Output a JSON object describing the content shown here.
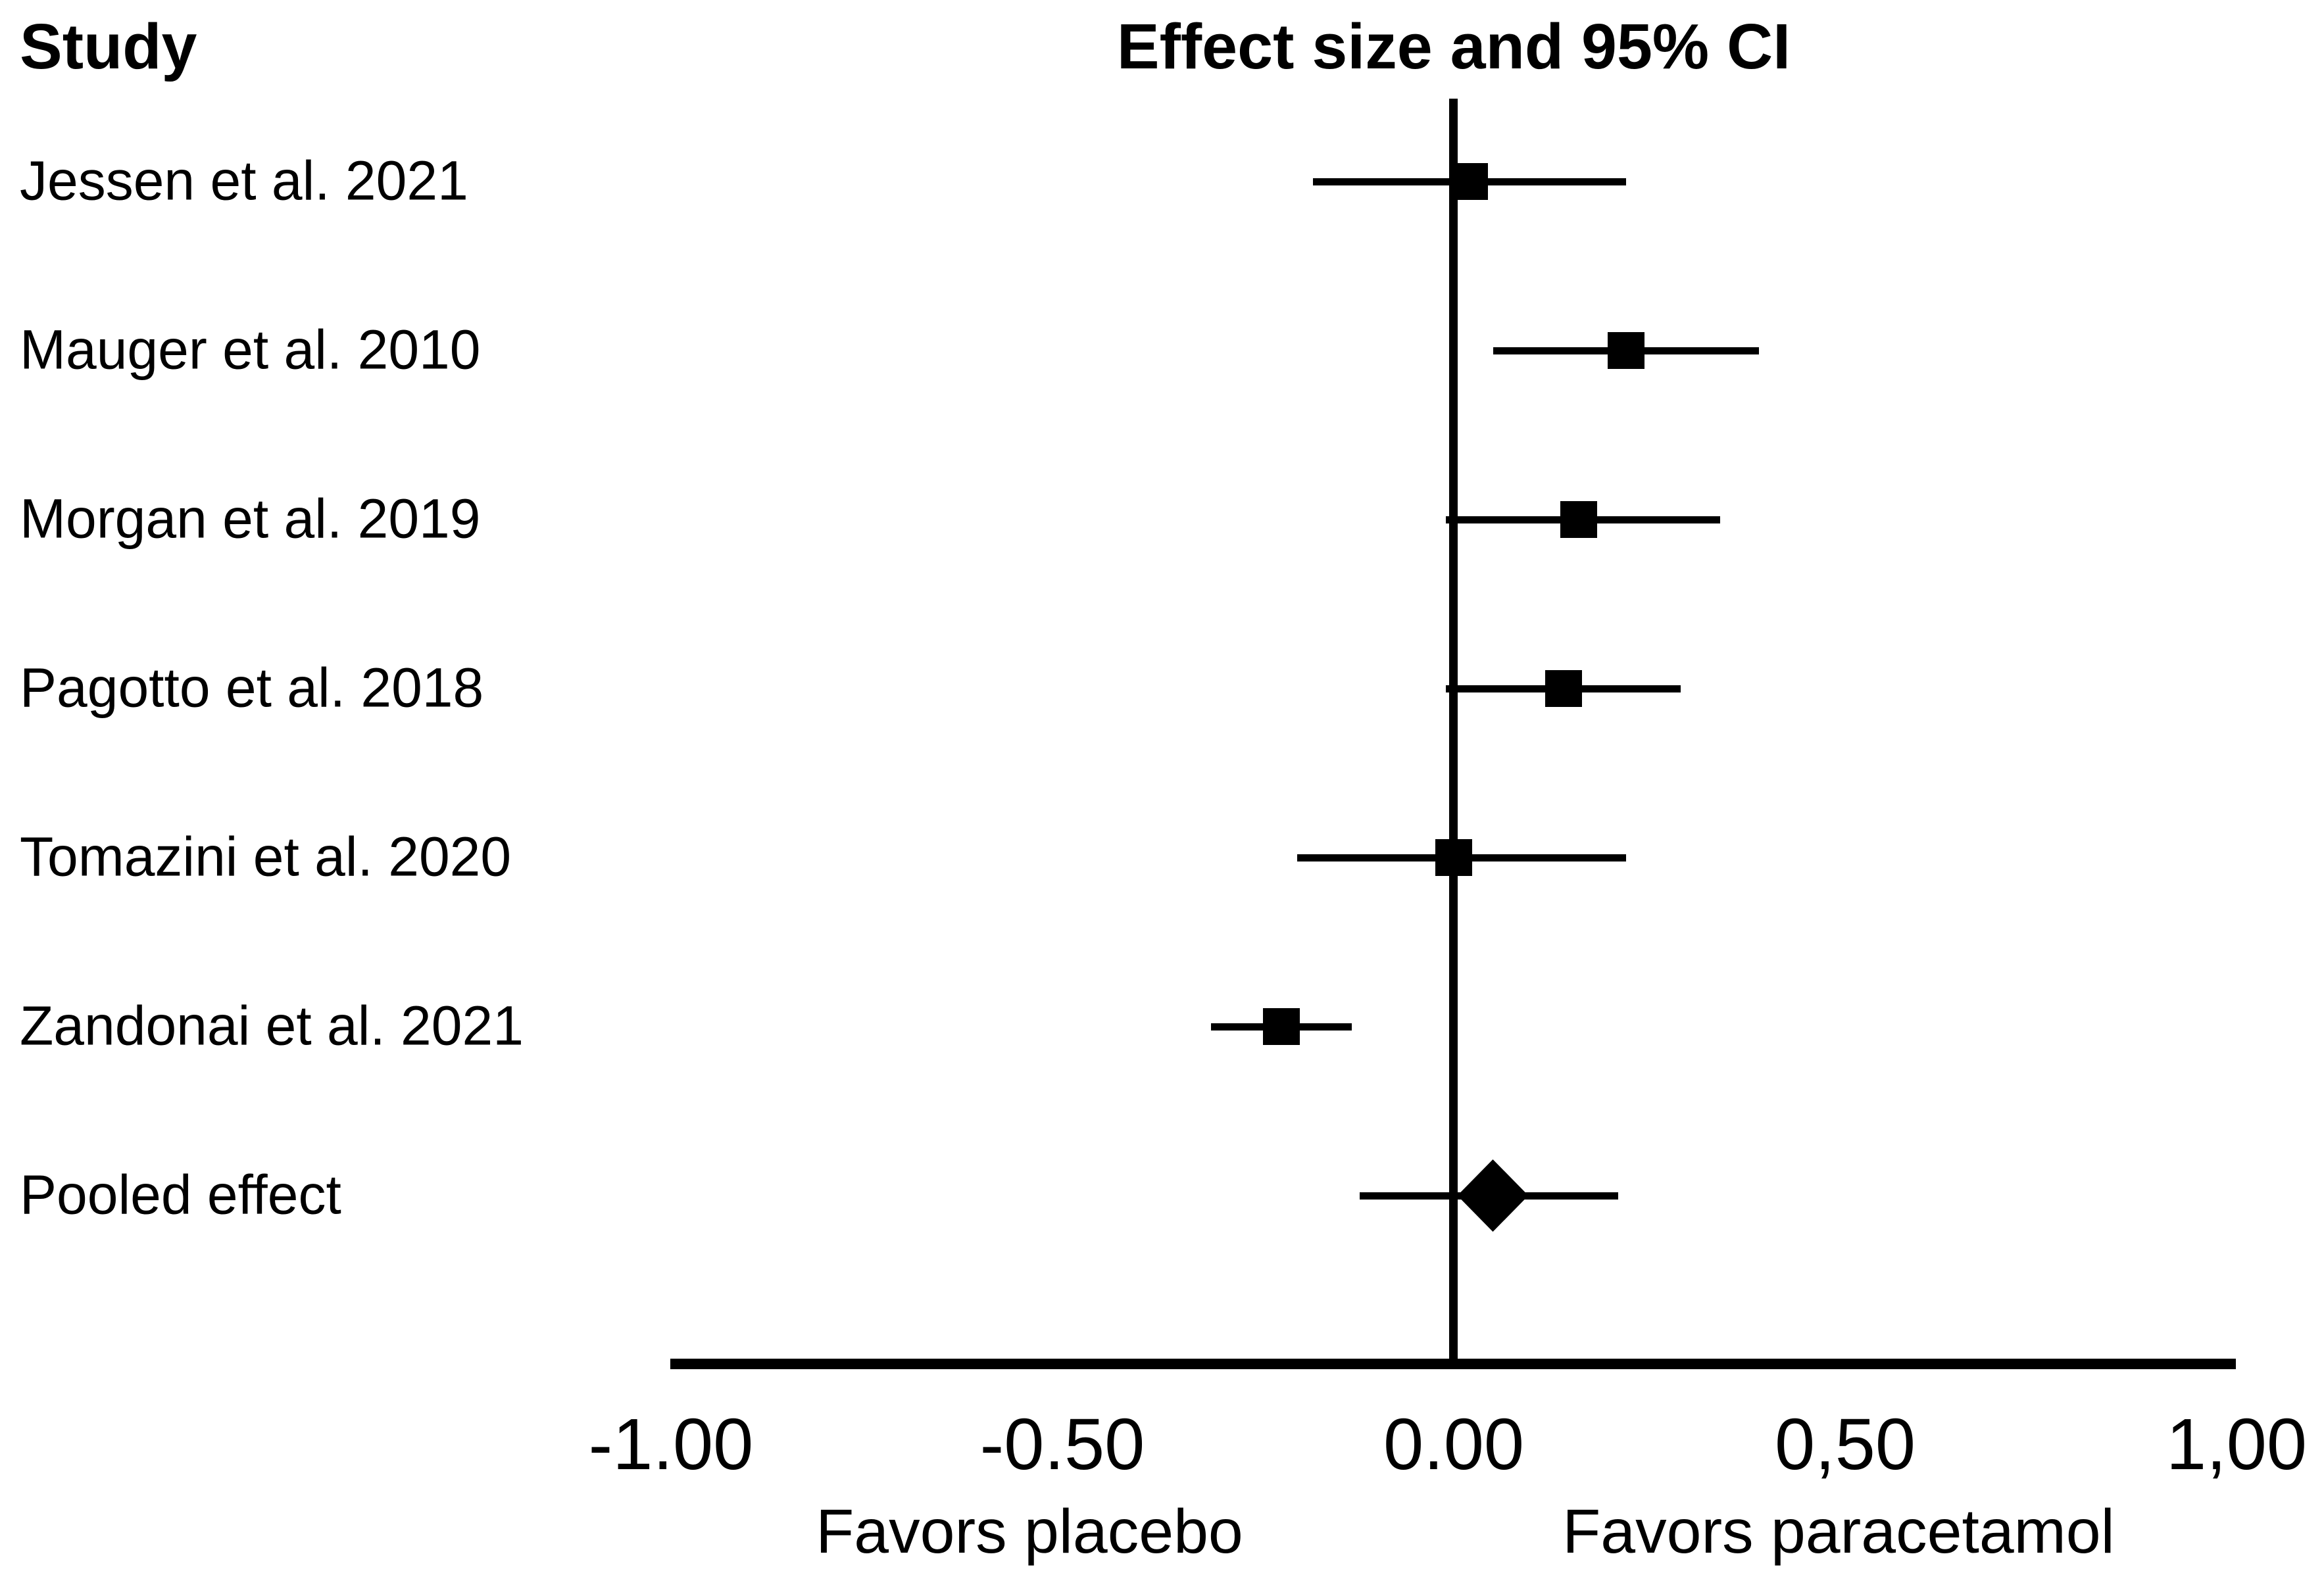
{
  "header": {
    "left": "Study",
    "right": "Effect size and 95% CI"
  },
  "chart_data": {
    "type": "forest",
    "title": "Effect size and 95% CI",
    "left_column_title": "Study",
    "effect_measure": "standardized effect size",
    "x_axis": {
      "range": [
        -1.0,
        1.0
      ],
      "ticks": [
        {
          "value": -1.0,
          "label": "-1.00"
        },
        {
          "value": -0.5,
          "label": "-0.50"
        },
        {
          "value": 0.0,
          "label": "0.00"
        },
        {
          "value": 0.5,
          "label": "0,50"
        },
        {
          "value": 1.0,
          "label": "1,00"
        }
      ],
      "left_caption": "Favors placebo",
      "right_caption": "Favors paracetamol",
      "zero_reference_line": true,
      "grid": false
    },
    "studies": [
      {
        "label": "Jessen et al. 2021",
        "effect": 0.02,
        "ci_low": -0.18,
        "ci_high": 0.22,
        "marker": "square"
      },
      {
        "label": "Mauger et al. 2010",
        "effect": 0.22,
        "ci_low": 0.05,
        "ci_high": 0.39,
        "marker": "square"
      },
      {
        "label": "Morgan et al. 2019",
        "effect": 0.16,
        "ci_low": -0.01,
        "ci_high": 0.34,
        "marker": "square"
      },
      {
        "label": "Pagotto et al. 2018",
        "effect": 0.14,
        "ci_low": -0.01,
        "ci_high": 0.29,
        "marker": "square"
      },
      {
        "label": "Tomazini et al. 2020",
        "effect": 0.0,
        "ci_low": -0.2,
        "ci_high": 0.22,
        "marker": "square"
      },
      {
        "label": "Zandonai et al. 2021",
        "effect": -0.22,
        "ci_low": -0.31,
        "ci_high": -0.13,
        "marker": "square"
      },
      {
        "label": "Pooled effect",
        "effect": 0.05,
        "ci_low": -0.12,
        "ci_high": 0.21,
        "marker": "diamond"
      }
    ]
  },
  "colors": {
    "foreground": "#000000",
    "background": "#ffffff"
  }
}
